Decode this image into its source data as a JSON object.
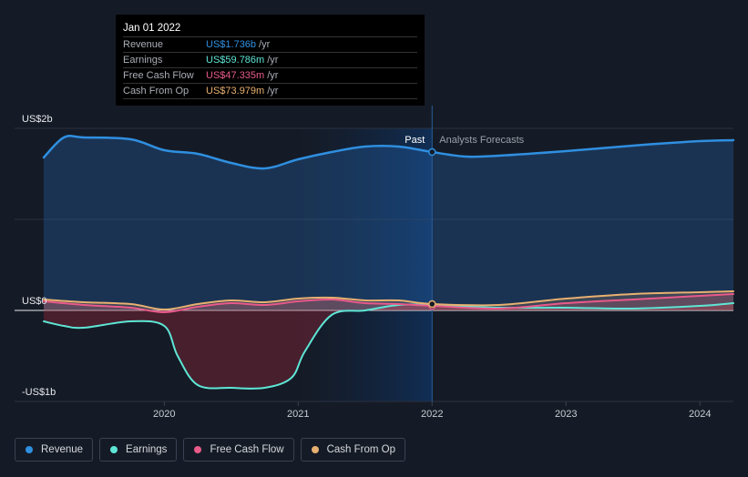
{
  "chart_data": {
    "type": "line",
    "x_axis": {
      "ticks": [
        "2020",
        "2021",
        "2022",
        "2023",
        "2024"
      ],
      "range": [
        2019.1,
        2024.25
      ]
    },
    "y_axis": {
      "ticks": [
        "US$2b",
        "US$0",
        "-US$1b"
      ],
      "range": [
        -1.0,
        2.0
      ]
    },
    "split_x": 2022.0,
    "split_labels": {
      "past": "Past",
      "forecast": "Analysts Forecasts"
    },
    "series": [
      {
        "name": "Revenue",
        "color": "#2f8fe0",
        "x": [
          2019.1,
          2019.25,
          2019.4,
          2019.75,
          2020.0,
          2020.25,
          2020.5,
          2020.75,
          2021.0,
          2021.25,
          2021.5,
          2021.75,
          2022.0,
          2022.25,
          2022.5,
          2023.0,
          2023.5,
          2024.0,
          2024.25
        ],
        "y": [
          1.68,
          1.9,
          1.9,
          1.88,
          1.76,
          1.72,
          1.62,
          1.56,
          1.66,
          1.74,
          1.8,
          1.8,
          1.74,
          1.69,
          1.7,
          1.75,
          1.81,
          1.86,
          1.87
        ]
      },
      {
        "name": "Earnings",
        "color": "#5ee6d6",
        "x": [
          2019.1,
          2019.25,
          2019.4,
          2019.75,
          2020.0,
          2020.1,
          2020.25,
          2020.5,
          2020.75,
          2020.95,
          2021.05,
          2021.25,
          2021.5,
          2021.75,
          2022.0,
          2022.5,
          2023.0,
          2023.5,
          2024.0,
          2024.25
        ],
        "y": [
          -0.12,
          -0.17,
          -0.19,
          -0.12,
          -0.17,
          -0.5,
          -0.82,
          -0.85,
          -0.85,
          -0.74,
          -0.45,
          -0.05,
          0.0,
          0.06,
          0.06,
          0.03,
          0.03,
          0.02,
          0.05,
          0.08
        ]
      },
      {
        "name": "Free Cash Flow",
        "color": "#e85a8a",
        "x": [
          2019.1,
          2019.4,
          2019.75,
          2020.0,
          2020.25,
          2020.5,
          2020.75,
          2021.0,
          2021.25,
          2021.5,
          2021.75,
          2022.0,
          2022.5,
          2023.0,
          2023.5,
          2024.0,
          2024.25
        ],
        "y": [
          0.1,
          0.06,
          0.03,
          -0.02,
          0.04,
          0.08,
          0.06,
          0.1,
          0.12,
          0.08,
          0.07,
          0.05,
          0.02,
          0.08,
          0.12,
          0.16,
          0.18
        ]
      },
      {
        "name": "Cash From Op",
        "color": "#e8b070",
        "x": [
          2019.1,
          2019.4,
          2019.75,
          2020.0,
          2020.25,
          2020.5,
          2020.75,
          2021.0,
          2021.25,
          2021.5,
          2021.75,
          2022.0,
          2022.5,
          2023.0,
          2023.5,
          2024.0,
          2024.25
        ],
        "y": [
          0.12,
          0.09,
          0.07,
          0.01,
          0.07,
          0.11,
          0.09,
          0.13,
          0.14,
          0.11,
          0.11,
          0.07,
          0.06,
          0.13,
          0.18,
          0.2,
          0.21
        ]
      }
    ]
  },
  "tooltip": {
    "date": "Jan 01 2022",
    "rows": [
      {
        "label": "Revenue",
        "value": "US$1.736b",
        "unit": "/yr",
        "color": "#2f8fe0"
      },
      {
        "label": "Earnings",
        "value": "US$59.786m",
        "unit": "/yr",
        "color": "#5ee6d6"
      },
      {
        "label": "Free Cash Flow",
        "value": "US$47.335m",
        "unit": "/yr",
        "color": "#e85a8a"
      },
      {
        "label": "Cash From Op",
        "value": "US$73.979m",
        "unit": "/yr",
        "color": "#e8b070"
      }
    ]
  },
  "legend": [
    {
      "label": "Revenue",
      "color": "#2f8fe0"
    },
    {
      "label": "Earnings",
      "color": "#5ee6d6"
    },
    {
      "label": "Free Cash Flow",
      "color": "#e85a8a"
    },
    {
      "label": "Cash From Op",
      "color": "#e8b070"
    }
  ]
}
